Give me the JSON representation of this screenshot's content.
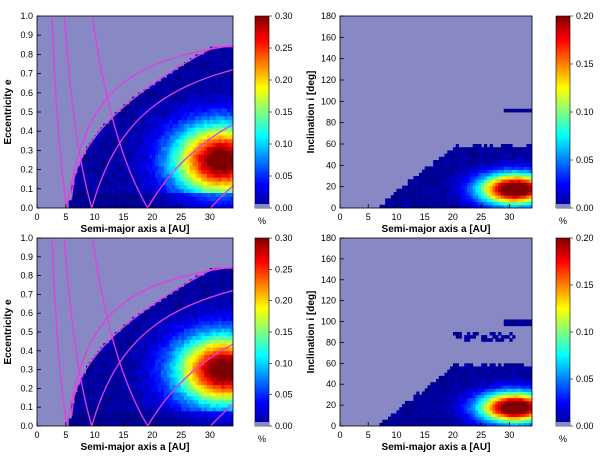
{
  "chart_data": [
    {
      "type": "heatmap",
      "xlabel": "Semi-major axis a [AU]",
      "ylabel": "Eccentricity e",
      "x_ticks": [
        0,
        5,
        10,
        15,
        20,
        25,
        30
      ],
      "y_ticks": [
        "0.0",
        "0.1",
        "0.2",
        "0.3",
        "0.4",
        "0.5",
        "0.6",
        "0.7",
        "0.8",
        "0.9",
        "1.0"
      ],
      "xlim": [
        0,
        34
      ],
      "ylim": [
        0,
        1
      ],
      "colorbar": {
        "min": 0,
        "max": 0.3,
        "ticks": [
          "0.00",
          "0.05",
          "0.10",
          "0.15",
          "0.20",
          "0.25",
          "0.30"
        ],
        "unit": "%"
      },
      "overlay_curves": [
        "magenta perihelion / aphelion crossing curves"
      ],
      "hot_region": {
        "a": [
          24,
          34
        ],
        "e": [
          0.1,
          0.4
        ],
        "peak": 0.3
      }
    },
    {
      "type": "heatmap",
      "xlabel": "Semi-major axis a [AU]",
      "ylabel": "Inclination i [deg]",
      "x_ticks": [
        0,
        5,
        10,
        15,
        20,
        25,
        30
      ],
      "y_ticks": [
        0,
        20,
        40,
        60,
        80,
        100,
        120,
        140,
        160,
        180
      ],
      "xlim": [
        0,
        34
      ],
      "ylim": [
        0,
        180
      ],
      "colorbar": {
        "min": 0,
        "max": 0.2,
        "ticks": [
          "0.00",
          "0.05",
          "0.10",
          "0.15",
          "0.20"
        ],
        "unit": "%"
      },
      "hot_region": {
        "a": [
          24,
          34
        ],
        "i": [
          5,
          30
        ],
        "peak": 0.2
      }
    },
    {
      "type": "heatmap",
      "xlabel": "Semi-major axis a [AU]",
      "ylabel": "Eccentricity e",
      "x_ticks": [
        0,
        5,
        10,
        15,
        20,
        25,
        30
      ],
      "y_ticks": [
        "0.0",
        "0.1",
        "0.2",
        "0.3",
        "0.4",
        "0.5",
        "0.6",
        "0.7",
        "0.8",
        "0.9",
        "1.0"
      ],
      "xlim": [
        0,
        34
      ],
      "ylim": [
        0,
        1
      ],
      "colorbar": {
        "min": 0,
        "max": 0.3,
        "ticks": [
          "0.00",
          "0.05",
          "0.10",
          "0.15",
          "0.20",
          "0.25",
          "0.30"
        ],
        "unit": "%"
      },
      "hot_region": {
        "a": [
          25,
          34
        ],
        "e": [
          0.15,
          0.45
        ],
        "peak": 0.3
      }
    },
    {
      "type": "heatmap",
      "xlabel": "Semi-major axis a [AU]",
      "ylabel": "Inclination i [deg]",
      "x_ticks": [
        0,
        5,
        10,
        15,
        20,
        25,
        30
      ],
      "y_ticks": [
        0,
        20,
        40,
        60,
        80,
        100,
        120,
        140,
        160,
        180
      ],
      "xlim": [
        0,
        34
      ],
      "ylim": [
        0,
        180
      ],
      "colorbar": {
        "min": 0,
        "max": 0.2,
        "ticks": [
          "0.00",
          "0.05",
          "0.10",
          "0.15",
          "0.20"
        ],
        "unit": "%"
      },
      "hot_region": {
        "a": [
          25,
          34
        ],
        "i": [
          5,
          30
        ],
        "peak": 0.2
      }
    }
  ]
}
